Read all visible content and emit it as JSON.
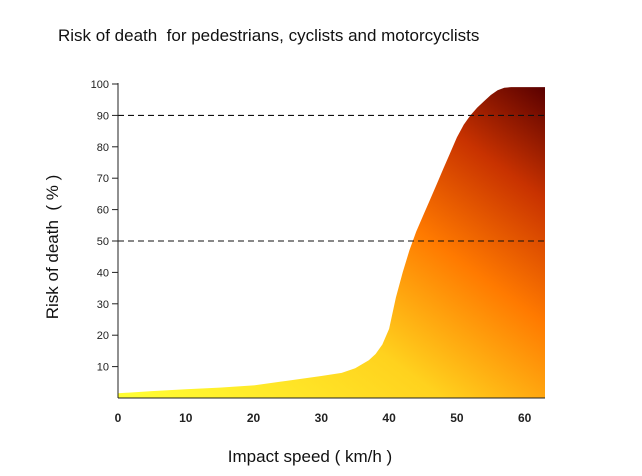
{
  "chart_data": {
    "type": "area",
    "title": "Risk of death  for pedestrians, cyclists and motorcyclists",
    "xlabel": "Impact speed ( km/h )",
    "ylabel": "Risk of death  ( % )",
    "xlim": [
      0,
      63
    ],
    "ylim": [
      0,
      100
    ],
    "x_ticks": [
      0,
      10,
      20,
      30,
      40,
      50,
      60
    ],
    "y_ticks": [
      10,
      20,
      30,
      40,
      50,
      60,
      70,
      80,
      90,
      100
    ],
    "reference_lines": [
      90,
      50
    ],
    "grid": false,
    "legend": "none",
    "series": [
      {
        "x": [
          0,
          5,
          10,
          15,
          20,
          25,
          30,
          33,
          35,
          37,
          38,
          39,
          40,
          41,
          42,
          43,
          44,
          45,
          46,
          47,
          48,
          49,
          50,
          51,
          52,
          53,
          54,
          55,
          56,
          57,
          58,
          59,
          60,
          61,
          62,
          63
        ],
        "y": [
          1.5,
          2.2,
          2.8,
          3.3,
          4.0,
          5.5,
          7.0,
          8.0,
          9.5,
          12,
          14,
          17,
          22,
          32,
          40,
          47,
          53,
          58,
          63,
          68,
          73,
          78,
          83,
          87,
          90,
          92.5,
          94.5,
          96.5,
          98,
          98.8,
          99,
          99,
          99,
          99,
          99,
          99
        ]
      }
    ],
    "colors": {
      "low": "#ffff33",
      "mid_low": "#ffd21e",
      "mid": "#ff7a00",
      "mid_high": "#c83200",
      "high": "#5a0000",
      "reference_line": "#111111",
      "axis": "#222222"
    }
  }
}
